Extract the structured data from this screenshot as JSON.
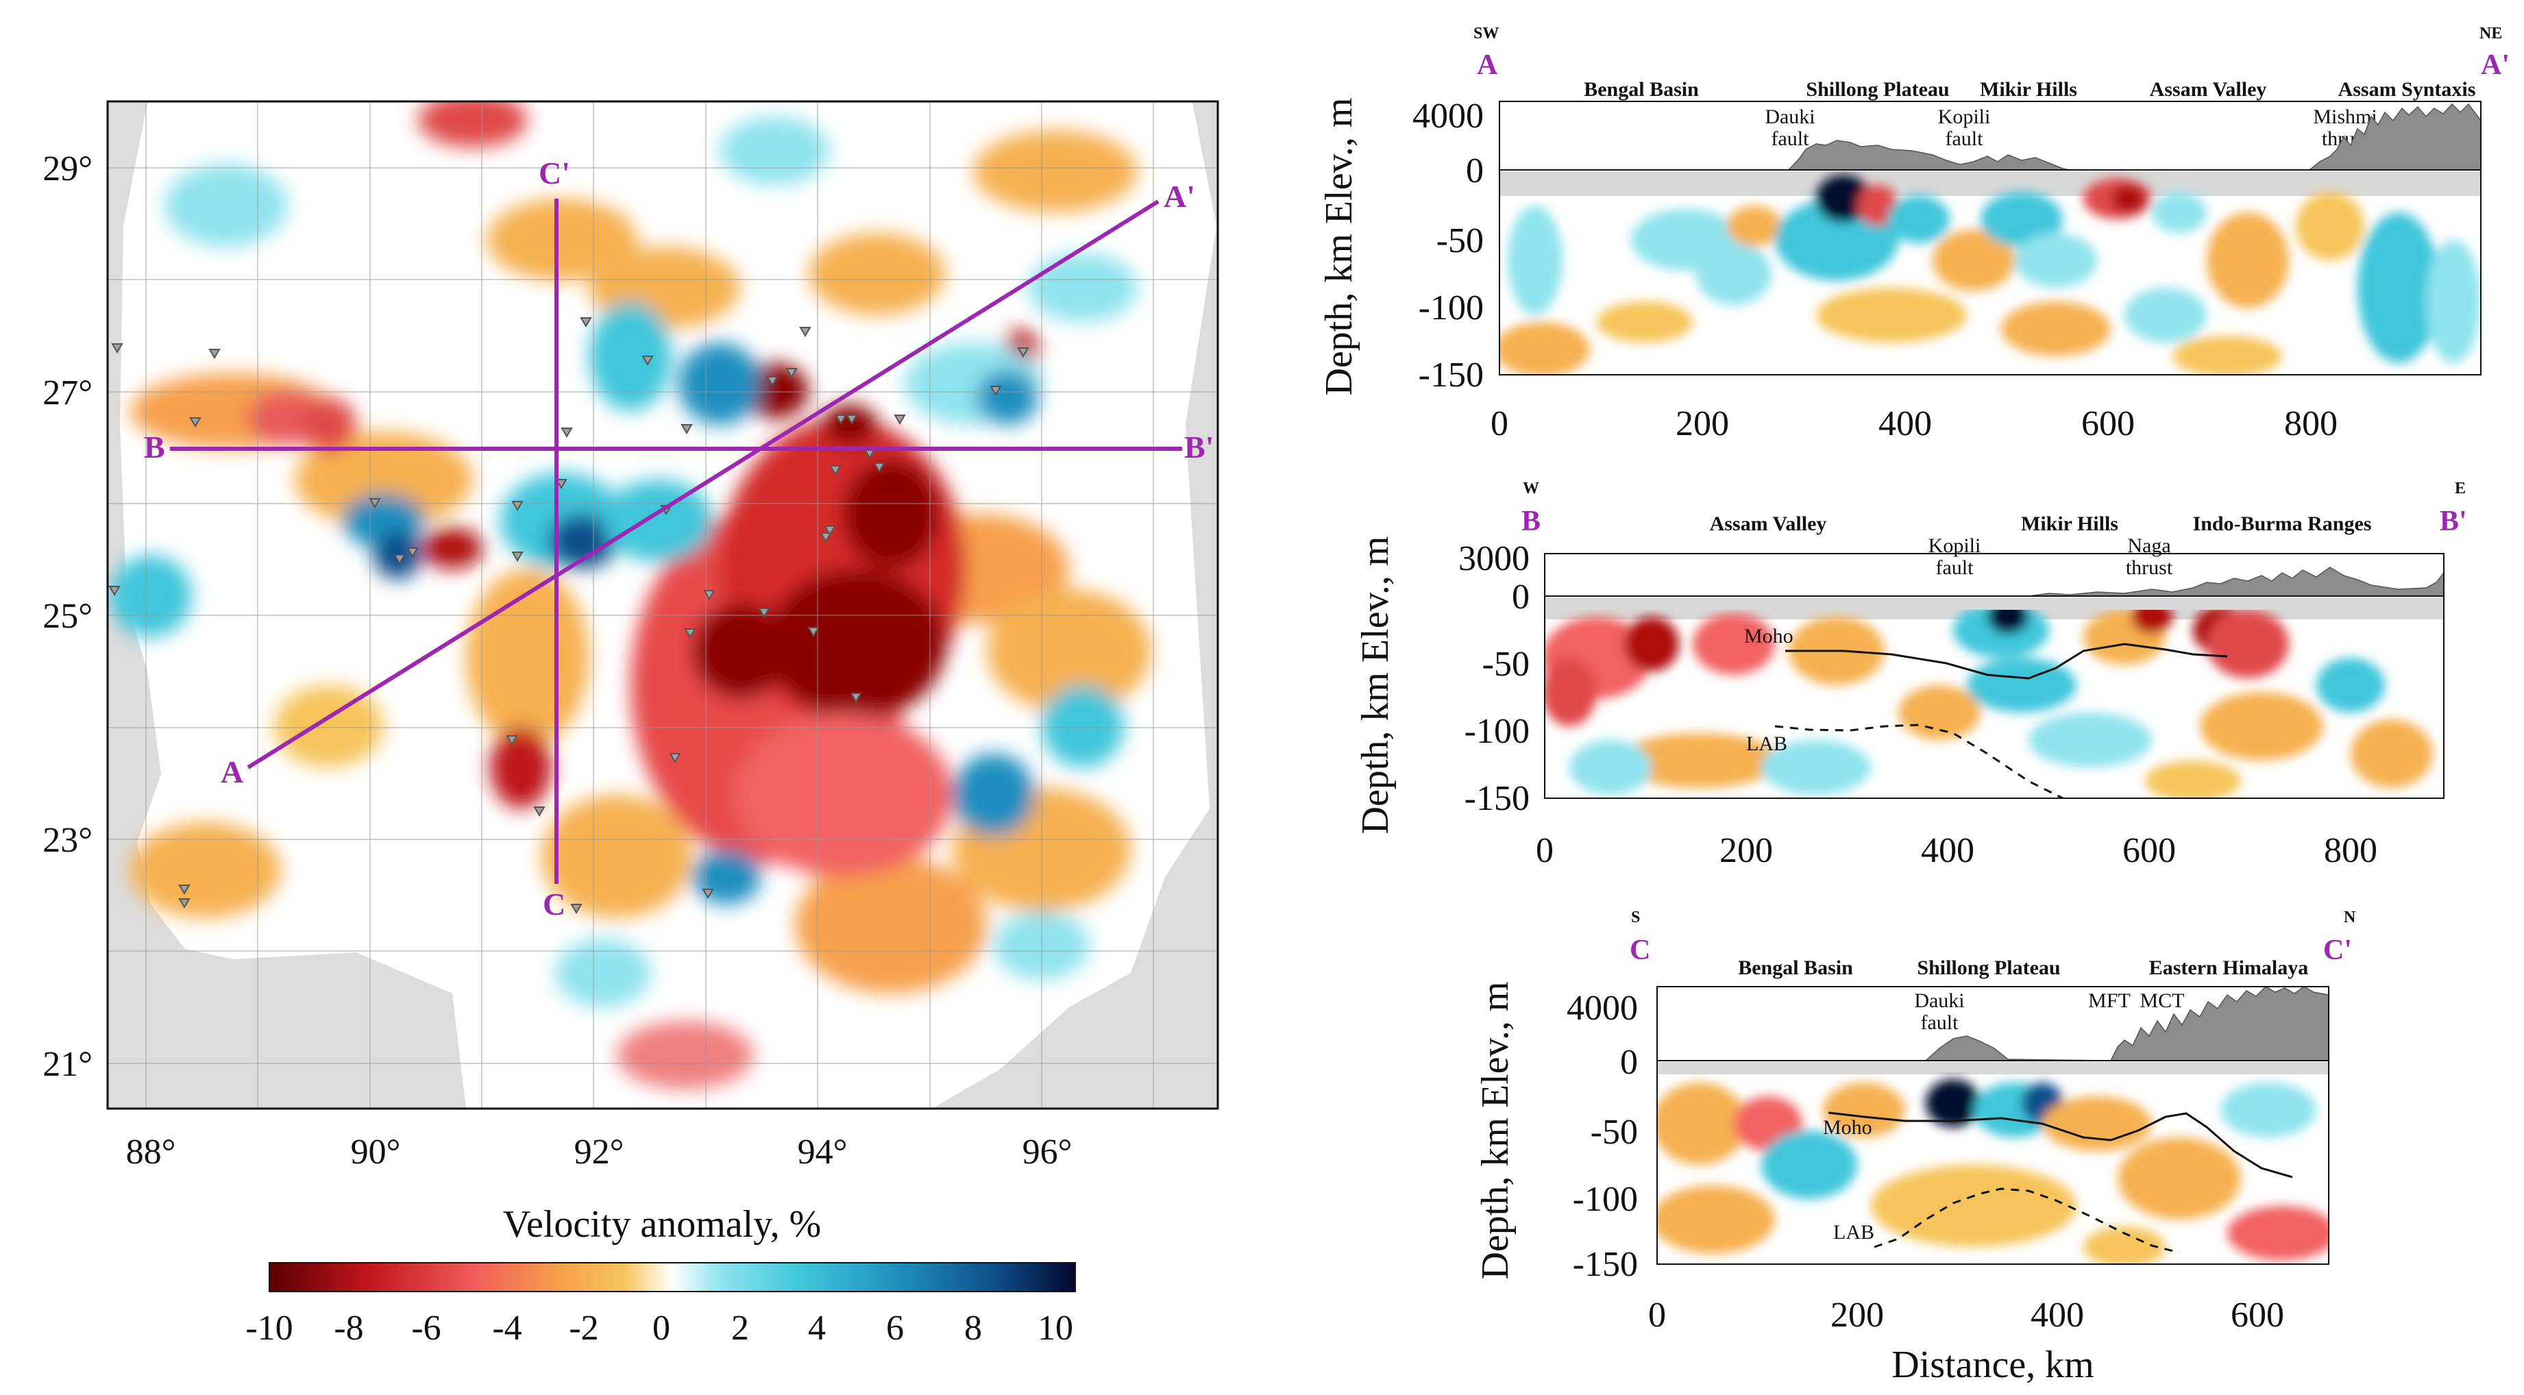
{
  "map": {
    "lat_labels": [
      "29°",
      "27°",
      "25°",
      "23°",
      "21°"
    ],
    "lon_labels": [
      "88°",
      "90°",
      "92°",
      "94°",
      "96°"
    ],
    "profile_labels": [
      "A",
      "A'",
      "B",
      "B'",
      "C",
      "C'"
    ]
  },
  "colorbar": {
    "title": "Velocity anomaly, %",
    "ticks": [
      "-10",
      "-8",
      "-6",
      "-4",
      "-2",
      "0",
      "2",
      "4",
      "6",
      "8",
      "10"
    ],
    "colors": [
      "#5a0000",
      "#c0141c",
      "#f05a5a",
      "#f7a04b",
      "#f6c45a",
      "#ffffff",
      "#8fe3ee",
      "#3fc6db",
      "#1f8fc0",
      "#0e4f8c",
      "#03082e"
    ]
  },
  "sections": [
    {
      "start": "A",
      "end": "A'",
      "dir_start": "SW",
      "dir_end": "NE",
      "ylabel": "Depth, km Elev., m",
      "elev_ticks": [
        "4000",
        "0"
      ],
      "depth_ticks": [
        "-50",
        "-100",
        "-150"
      ],
      "x_ticks": [
        "0",
        "200",
        "400",
        "600",
        "800"
      ],
      "regions": [
        "Bengal Basin",
        "Shillong Plateau",
        "Mikir Hills",
        "Assam Valley",
        "Assam Syntaxis"
      ],
      "features": [
        "Dauki\nfault",
        "Kopili\nfault",
        "Mishmi\nthrust"
      ]
    },
    {
      "start": "B",
      "end": "B'",
      "dir_start": "W",
      "dir_end": "E",
      "ylabel": "Depth, km Elev., m",
      "elev_ticks": [
        "3000",
        "0"
      ],
      "depth_ticks": [
        "-50",
        "-100",
        "-150"
      ],
      "x_ticks": [
        "0",
        "200",
        "400",
        "600",
        "800"
      ],
      "regions": [
        "Assam Valley",
        "Mikir Hills",
        "Indo-Burma Ranges"
      ],
      "features": [
        "Kopili\nfault",
        "Naga\nthrust"
      ],
      "moho_label": "Moho",
      "lab_label": "LAB"
    },
    {
      "start": "C",
      "end": "C'",
      "dir_start": "S",
      "dir_end": "N",
      "ylabel": "Depth, km Elev., m",
      "elev_ticks": [
        "4000",
        "0"
      ],
      "depth_ticks": [
        "-50",
        "-100",
        "-150"
      ],
      "x_ticks": [
        "0",
        "200",
        "400",
        "600"
      ],
      "regions": [
        "Bengal Basin",
        "Shillong Plateau",
        "Eastern Himalaya"
      ],
      "features": [
        "Dauki\nfault",
        "MFT",
        "MCT"
      ],
      "moho_label": "Moho",
      "lab_label": "LAB",
      "xlabel": "Distance, km"
    }
  ]
}
